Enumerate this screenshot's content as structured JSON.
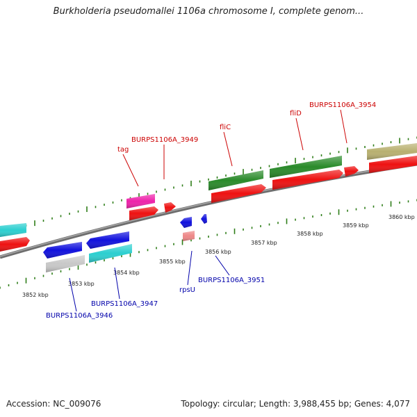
{
  "title": "Burkholderia pseudomallei 1106a chromosome I, complete genom...",
  "footer": {
    "accession": "Accession: NC_009076",
    "summary": "Topology: circular; Length: 3,988,455 bp; Genes: 4,077"
  },
  "colors": {
    "backbone": "#7a7a7a",
    "tick": "#2e7d18",
    "forward_label": "#cc0000",
    "reverse_label": "#0000aa",
    "cyan": "#2ccfd0",
    "red": "#ee1111",
    "blue": "#1111dd",
    "grey": "#c8c8c8",
    "magenta": "#ee22aa",
    "pink": "#ee8888",
    "green": "#2a8a2a",
    "khaki": "#b8b070"
  },
  "axis_labels": [
    "3852 kbp",
    "3853 kbp",
    "3854 kbp",
    "3855 kbp",
    "3856 kbp",
    "3857 kbp",
    "3858 kbp",
    "3859 kbp",
    "3860 kbp"
  ],
  "forward_gene_labels": [
    "tag",
    "BURPS1106A_3949",
    "fliC",
    "fliD",
    "BURPS1106A_3954"
  ],
  "reverse_gene_labels": [
    "BURPS1106A_3946",
    "BURPS1106A_3947",
    "rpsU",
    "BURPS1106A_3951"
  ]
}
